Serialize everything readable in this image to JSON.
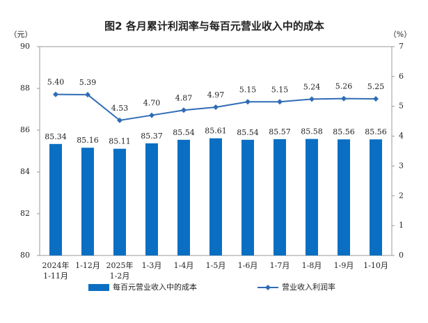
{
  "chart_data": {
    "type": "bar",
    "title": "图2  各月累计利润率与每百元营业收入中的成本",
    "y_unit": "（元）",
    "y2_unit": "（%）",
    "categories": [
      "2024年\n1-11月",
      "1-12月",
      "2025年\n1-2月",
      "1-3月",
      "1-4月",
      "1-5月",
      "1-6月",
      "1-7月",
      "1-8月",
      "1-9月",
      "1-10月"
    ],
    "series": [
      {
        "name": "每百元营业收入中的成本",
        "type": "bar",
        "color": "#0a6fc2",
        "values": [
          85.34,
          85.16,
          85.11,
          85.37,
          85.54,
          85.61,
          85.54,
          85.57,
          85.58,
          85.56,
          85.56
        ]
      },
      {
        "name": "营业收入利润率",
        "type": "line",
        "axis": "y2",
        "color": "#2f6cb5",
        "values": [
          5.4,
          5.39,
          4.53,
          4.7,
          4.87,
          4.97,
          5.15,
          5.15,
          5.24,
          5.26,
          5.25
        ],
        "value_labels": [
          "5.40",
          "5.39",
          "4.53",
          "4.70",
          "4.87",
          "4.97",
          "5.15",
          "5.15",
          "5.24",
          "5.26",
          "5.25"
        ]
      }
    ],
    "ylim": [
      80,
      90
    ],
    "yticks": [
      80,
      82,
      84,
      86,
      88,
      90
    ],
    "y2lim": [
      0,
      7
    ],
    "y2ticks": [
      0,
      1,
      2,
      3,
      4,
      5,
      6,
      7
    ],
    "legend": "bottom"
  }
}
